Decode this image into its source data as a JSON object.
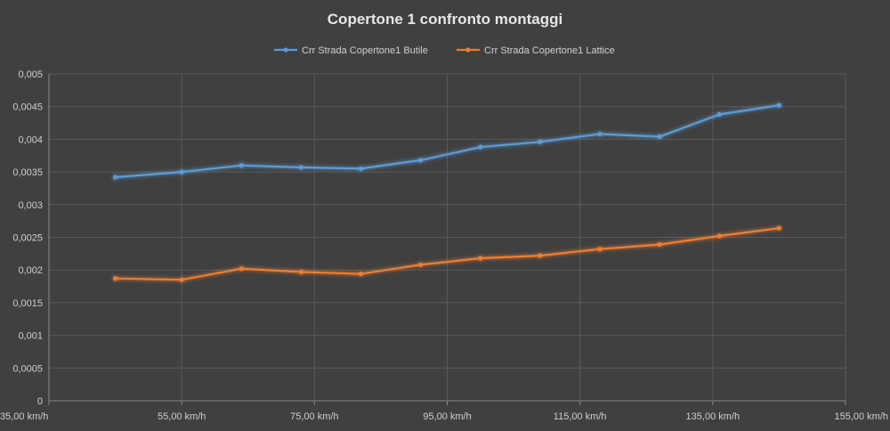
{
  "chart_data": {
    "type": "line",
    "title": "Copertone 1 confronto montaggi",
    "xlabel": "",
    "ylabel": "",
    "xlim": [
      35,
      155
    ],
    "ylim": [
      0,
      0.005
    ],
    "x_ticks": [
      35,
      55,
      75,
      95,
      115,
      135,
      155
    ],
    "x_tick_labels": [
      "35,00 km/h",
      "55,00 km/h",
      "75,00 km/h",
      "95,00 km/h",
      "115,00 km/h",
      "135,00 km/h",
      "155,00 km/h"
    ],
    "y_ticks": [
      0,
      0.0005,
      0.001,
      0.0015,
      0.002,
      0.0025,
      0.003,
      0.0035,
      0.004,
      0.0045,
      0.005
    ],
    "y_tick_labels": [
      "0",
      "0,0005",
      "0,001",
      "0,0015",
      "0,002",
      "0,0025",
      "0,003",
      "0,0035",
      "0,004",
      "0,0045",
      "0,005"
    ],
    "grid": true,
    "legend_position": "top",
    "series": [
      {
        "name": "Crr Strada Copertone1 Butile",
        "color": "#5b9bd5",
        "x": [
          45,
          55,
          64,
          73,
          82,
          91,
          100,
          109,
          118,
          127,
          136,
          145
        ],
        "y": [
          0.00342,
          0.0035,
          0.0036,
          0.00357,
          0.00355,
          0.00368,
          0.00388,
          0.00396,
          0.00408,
          0.00404,
          0.00438,
          0.00452
        ]
      },
      {
        "name": "Crr Strada Copertone1 Lattice",
        "color": "#ed7d31",
        "x": [
          45,
          55,
          64,
          73,
          82,
          91,
          100,
          109,
          118,
          127,
          136,
          145
        ],
        "y": [
          0.00187,
          0.00185,
          0.00202,
          0.00197,
          0.00194,
          0.00208,
          0.00218,
          0.00222,
          0.00232,
          0.00239,
          0.00252,
          0.00264
        ]
      }
    ]
  }
}
